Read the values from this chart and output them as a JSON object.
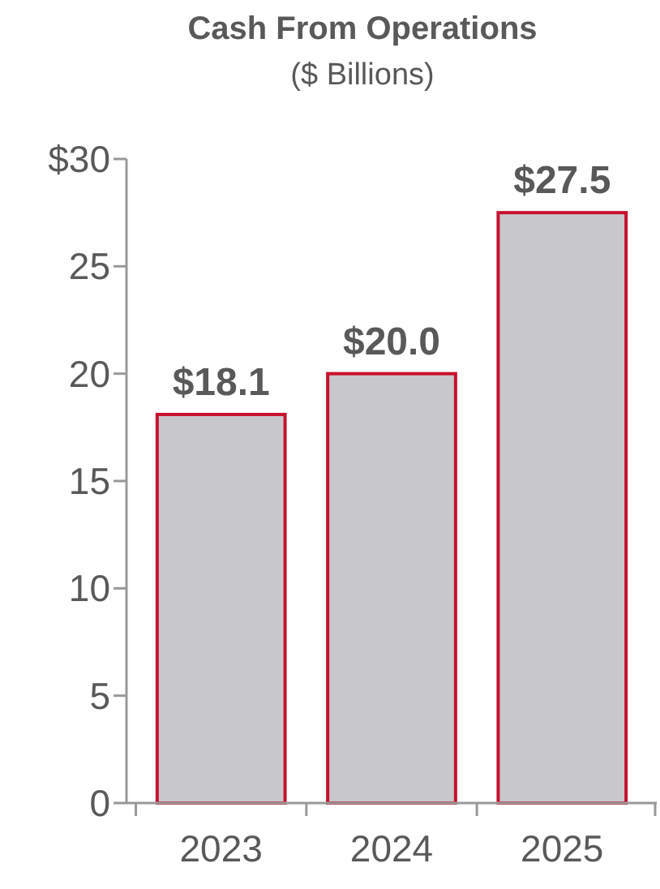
{
  "chart_data": {
    "type": "bar",
    "title": "Cash From Operations",
    "subtitle": "($ Billions)",
    "categories": [
      "2023",
      "2024",
      "2025"
    ],
    "values": [
      18.1,
      20.0,
      27.5
    ],
    "value_labels": [
      "$18.1",
      "$20.0",
      "$27.5"
    ],
    "color": "#c8c8ca",
    "ylim": [
      0,
      30
    ],
    "yticks": [
      0,
      5,
      10,
      15,
      20,
      25,
      {
        "value": 30,
        "label": "$30"
      }
    ],
    "grid": false
  }
}
